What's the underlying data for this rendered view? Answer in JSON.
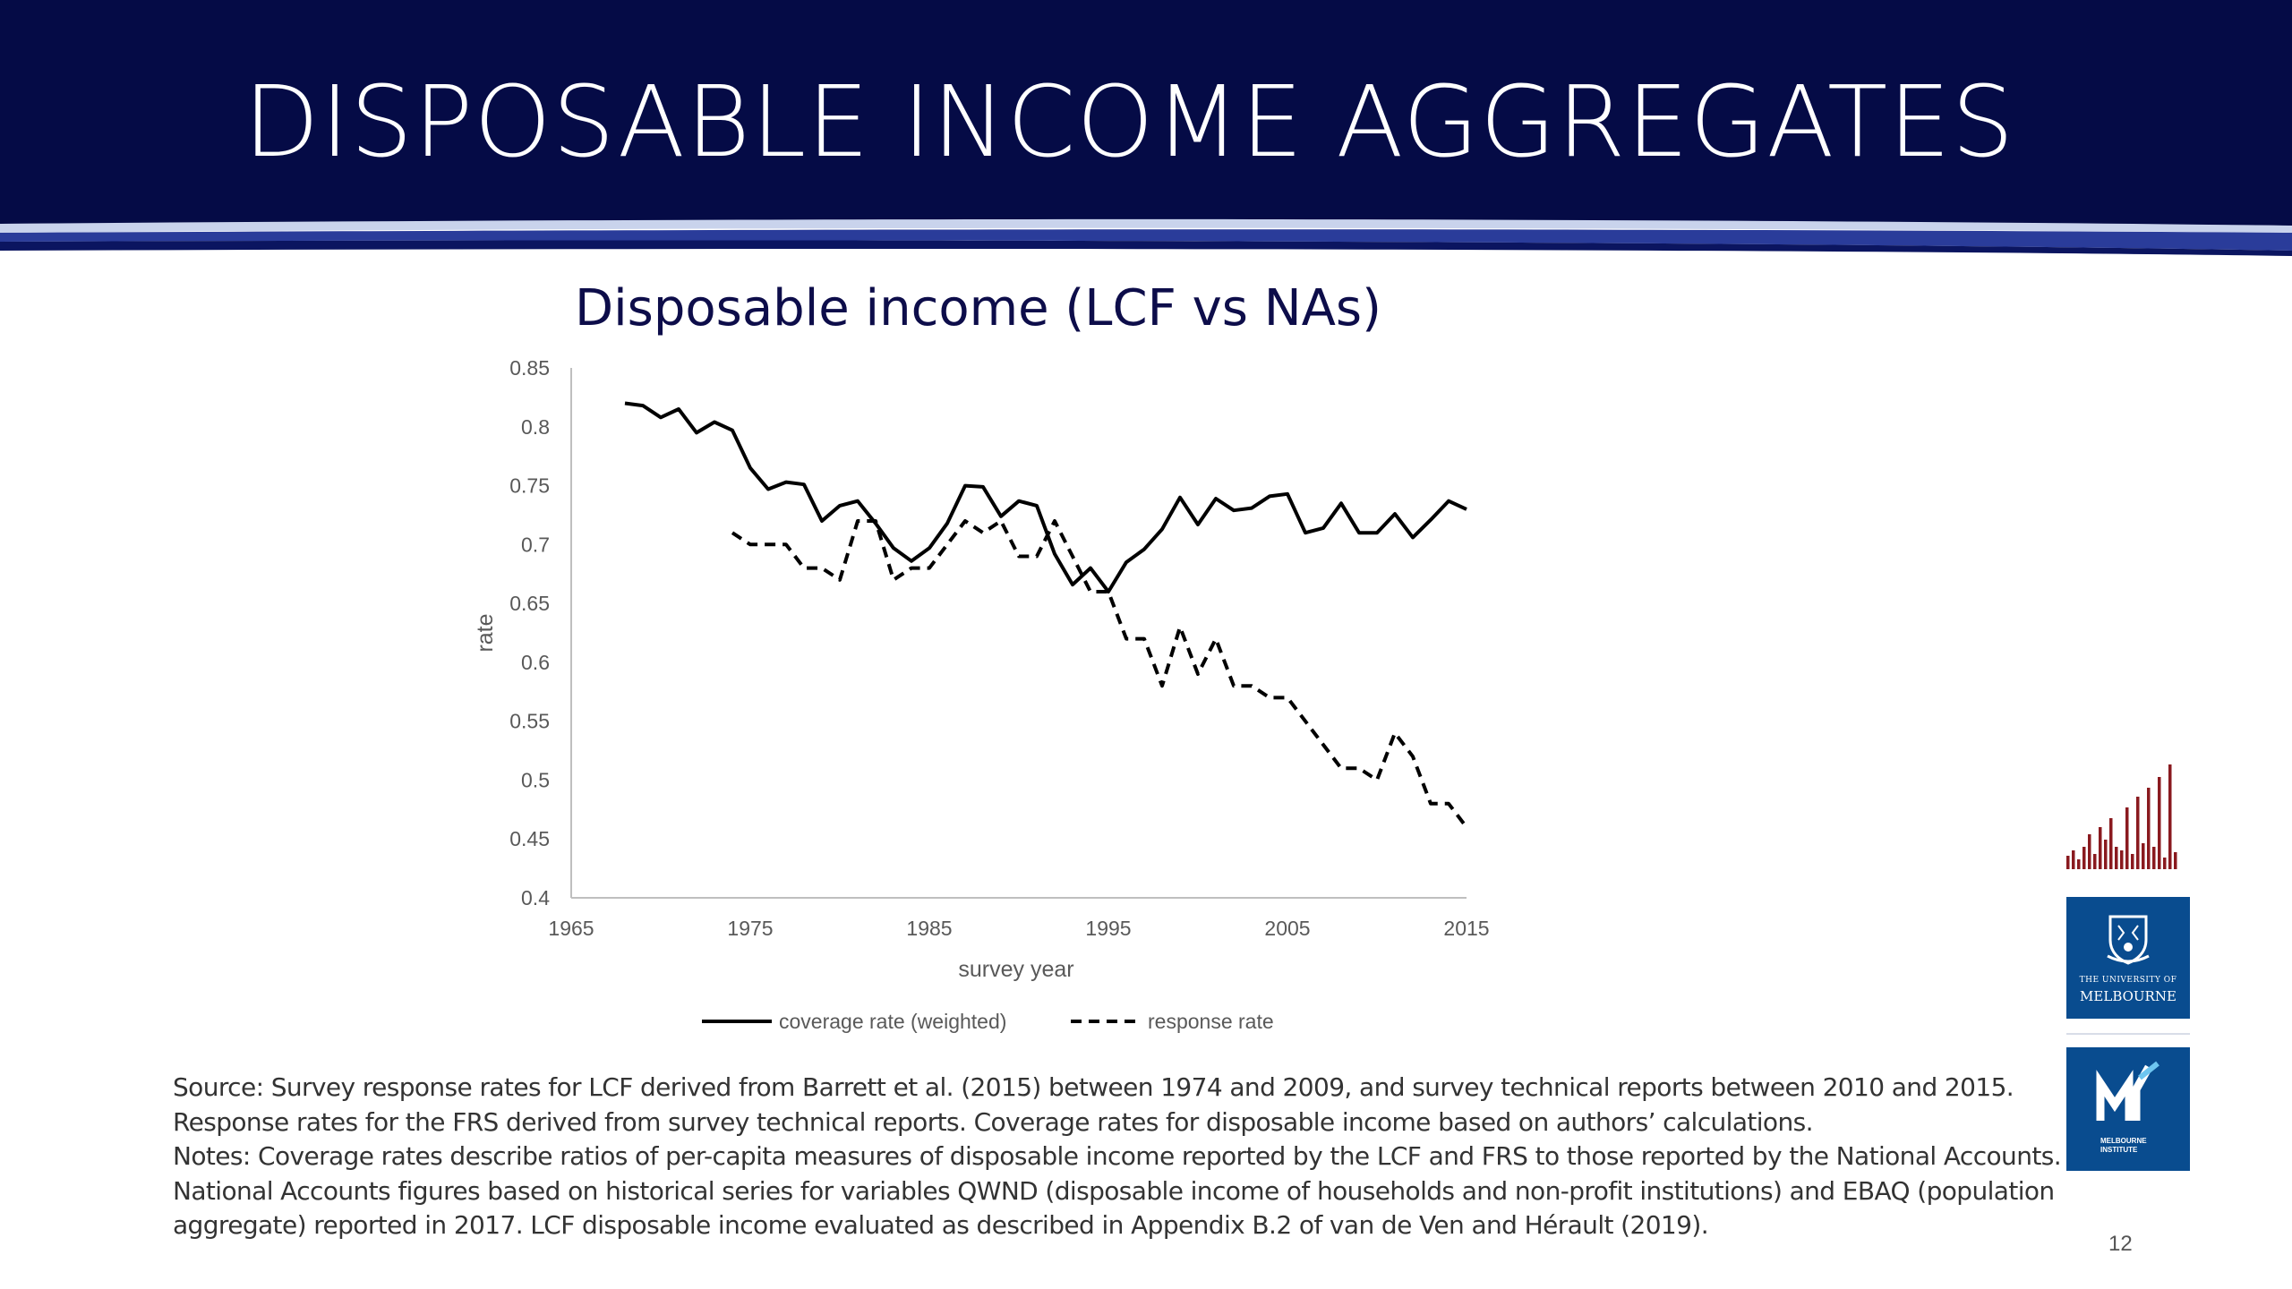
{
  "slide": {
    "title": "DISPOSABLE INCOME AGGREGATES",
    "page_number": "12",
    "colors": {
      "header_bg": "#050b46",
      "accent_blue": "#2a3c9a",
      "logo_red": "#8a1a1f",
      "logo_blue": "#094c8f"
    }
  },
  "chart_data": {
    "type": "line",
    "title": "Disposable income (LCF vs NAs)",
    "xlabel": "survey year",
    "ylabel": "rate",
    "xlim": [
      1965,
      2015
    ],
    "ylim": [
      0.4,
      0.85
    ],
    "xticks": [
      "1965",
      "1975",
      "1985",
      "1995",
      "2005",
      "2015"
    ],
    "yticks": [
      "0.4",
      "0.45",
      "0.5",
      "0.55",
      "0.6",
      "0.65",
      "0.7",
      "0.75",
      "0.8",
      "0.85"
    ],
    "grid": false,
    "legend_position": "bottom",
    "series": [
      {
        "name": "coverage rate (weighted)",
        "style": "solid",
        "x": [
          1968,
          1969,
          1970,
          1971,
          1972,
          1973,
          1974,
          1975,
          1976,
          1977,
          1978,
          1979,
          1980,
          1981,
          1982,
          1983,
          1984,
          1985,
          1986,
          1987,
          1988,
          1989,
          1990,
          1991,
          1992,
          1993,
          1994,
          1995,
          1996,
          1997,
          1998,
          1999,
          2000,
          2001,
          2002,
          2003,
          2004,
          2005,
          2006,
          2007,
          2008,
          2009,
          2010,
          2011,
          2012,
          2013,
          2014,
          2015
        ],
        "values": [
          0.82,
          0.818,
          0.808,
          0.815,
          0.795,
          0.804,
          0.797,
          0.765,
          0.747,
          0.753,
          0.751,
          0.72,
          0.733,
          0.737,
          0.718,
          0.697,
          0.686,
          0.697,
          0.718,
          0.75,
          0.749,
          0.724,
          0.737,
          0.733,
          0.692,
          0.666,
          0.68,
          0.66,
          0.685,
          0.696,
          0.713,
          0.74,
          0.717,
          0.739,
          0.729,
          0.731,
          0.741,
          0.743,
          0.71,
          0.714,
          0.735,
          0.71,
          0.71,
          0.726,
          0.706,
          0.721,
          0.737,
          0.73
        ]
      },
      {
        "name": "response rate",
        "style": "dashed",
        "x": [
          1974,
          1975,
          1976,
          1977,
          1978,
          1979,
          1980,
          1981,
          1982,
          1983,
          1984,
          1985,
          1986,
          1987,
          1988,
          1989,
          1990,
          1991,
          1992,
          1993,
          1994,
          1995,
          1996,
          1997,
          1998,
          1999,
          2000,
          2001,
          2002,
          2003,
          2004,
          2005,
          2006,
          2007,
          2008,
          2009,
          2010,
          2011,
          2012,
          2013,
          2014,
          2015
        ],
        "values": [
          0.71,
          0.7,
          0.7,
          0.7,
          0.68,
          0.68,
          0.67,
          0.72,
          0.72,
          0.67,
          0.68,
          0.68,
          0.7,
          0.72,
          0.71,
          0.72,
          0.69,
          0.69,
          0.72,
          0.69,
          0.66,
          0.66,
          0.62,
          0.62,
          0.58,
          0.63,
          0.59,
          0.62,
          0.58,
          0.58,
          0.57,
          0.57,
          0.55,
          0.53,
          0.51,
          0.51,
          0.5,
          0.54,
          0.52,
          0.48,
          0.48,
          0.46
        ]
      }
    ]
  },
  "notes": [
    "Source:  Survey response rates for LCF derived from Barrett et al. (2015) between 1974 and 2009, and survey technical reports between 2010 and 2015.",
    "Response rates for the FRS derived from survey technical reports. Coverage rates for disposable income based on authors’ calculations.",
    "Notes: Coverage rates describe ratios of per-capita measures of disposable income reported by the LCF and FRS to those reported by the National Accounts.",
    "National Accounts figures based on historical series for variables QWND (disposable income of households and non-profit institutions) and EBAQ (population",
    "aggregate) reported in 2017.  LCF disposable income evaluated as described in Appendix B.2 of van de Ven and Hérault (2019)."
  ],
  "logos": {
    "university_line1": "THE UNIVERSITY OF",
    "university_line2": "MELBOURNE",
    "institute_line1": "MELBOURNE",
    "institute_line2": "INSTITUTE",
    "icons": [
      "bar-pattern-icon",
      "university-crest-icon",
      "mi-monogram-icon"
    ]
  }
}
